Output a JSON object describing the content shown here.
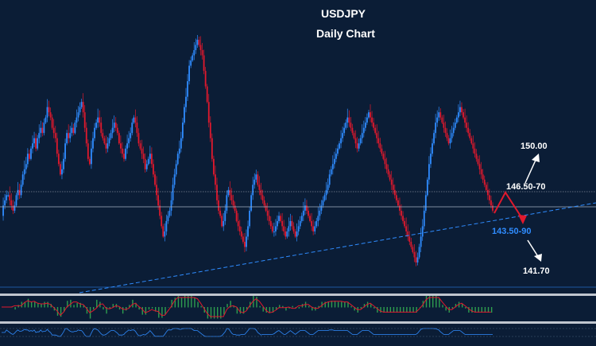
{
  "chart_data": {
    "type": "candlestick",
    "title": "USDJPY",
    "subtitle": "Daily Chart",
    "annotations": [
      {
        "text": "150.00",
        "color": "#ffffff"
      },
      {
        "text": "146.50-70",
        "color": "#ffffff"
      },
      {
        "text": "143.50-90",
        "color": "#2f8cff"
      },
      {
        "text": "141.70",
        "color": "#ffffff"
      }
    ],
    "path_y": [
      142,
      144,
      145,
      146,
      146,
      145,
      144,
      143,
      144,
      146,
      147,
      146,
      148,
      150,
      151,
      152,
      154,
      153,
      155,
      156,
      157,
      155,
      157,
      158,
      159,
      158,
      160,
      161,
      163,
      162,
      161,
      159,
      158,
      157,
      154,
      152,
      150,
      151,
      153,
      156,
      158,
      157,
      158,
      159,
      158,
      160,
      161,
      162,
      163,
      164,
      162,
      159,
      156,
      153,
      152,
      155,
      157,
      159,
      160,
      161,
      160,
      158,
      157,
      156,
      155,
      156,
      157,
      158,
      159,
      160,
      159,
      158,
      156,
      155,
      154,
      153,
      155,
      156,
      157,
      158,
      160,
      161,
      160,
      158,
      156,
      155,
      154,
      153,
      151,
      152,
      153,
      154,
      152,
      150,
      148,
      146,
      144,
      142,
      140,
      138,
      139,
      141,
      142,
      143,
      145,
      148,
      150,
      152,
      154,
      155,
      157,
      160,
      163,
      165,
      168,
      171,
      172,
      173,
      174,
      175,
      176,
      175,
      174,
      173,
      170,
      167,
      164,
      160,
      157,
      153,
      150,
      148,
      145,
      143,
      142,
      140,
      141,
      143,
      146,
      147,
      146,
      145,
      144,
      143,
      141,
      140,
      139,
      138,
      137,
      136,
      138,
      140,
      143,
      146,
      148,
      149,
      150,
      148,
      147,
      146,
      145,
      144,
      143,
      142,
      141,
      140,
      139,
      139,
      140,
      141,
      142,
      141,
      140,
      139,
      138,
      139,
      140,
      141,
      140,
      139,
      138,
      139,
      140,
      141,
      142,
      143,
      144,
      143,
      142,
      141,
      140,
      139,
      140,
      141,
      142,
      143,
      144,
      145,
      146,
      147,
      148,
      150,
      151,
      152,
      153,
      154,
      155,
      156,
      157,
      158,
      159,
      160,
      161,
      160,
      159,
      158,
      157,
      156,
      155,
      156,
      157,
      158,
      159,
      160,
      161,
      162,
      161,
      160,
      159,
      158,
      157,
      156,
      155,
      154,
      153,
      152,
      151,
      150,
      149,
      148,
      147,
      146,
      145,
      144,
      143,
      142,
      141,
      140,
      139,
      138,
      137,
      136,
      135,
      134,
      133,
      134,
      136,
      138,
      140,
      143,
      146,
      149,
      152,
      154,
      156,
      158,
      160,
      161,
      162,
      161,
      160,
      159,
      158,
      157,
      156,
      157,
      158,
      159,
      160,
      161,
      162,
      163,
      162,
      161,
      160,
      159,
      158,
      157,
      156,
      155,
      154,
      153,
      152,
      151,
      150,
      149,
      148,
      147,
      146,
      145,
      144,
      143
    ]
  },
  "colors": {
    "background": "#0b1d36",
    "up_candle": "#2f8cff",
    "down_candle": "#e0192d",
    "arrow_red": "#e0192d",
    "arrow_white": "#ffffff",
    "trendline": "#2f8cff"
  }
}
